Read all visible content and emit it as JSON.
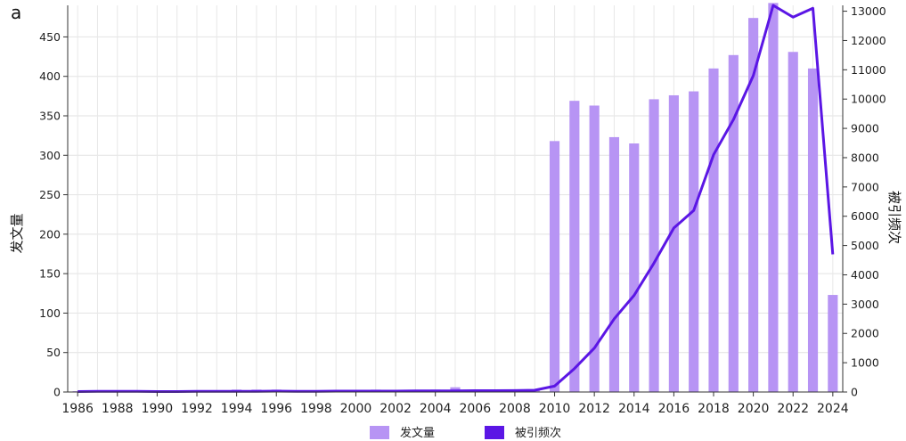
{
  "chart_data": {
    "type": "bar",
    "panel_label": "a",
    "title": "",
    "xlabel": "",
    "ylabel_left": "发文量",
    "ylabel_right": "被引频次",
    "ylim_left": [
      0,
      490
    ],
    "ylim_right": [
      0,
      13200
    ],
    "yticks_left": [
      0,
      50,
      100,
      150,
      200,
      250,
      300,
      350,
      400,
      450
    ],
    "yticks_right": [
      0,
      1000,
      2000,
      3000,
      4000,
      5000,
      6000,
      7000,
      8000,
      9000,
      10000,
      11000,
      12000,
      13000
    ],
    "grid": true,
    "legend_position": "bottom",
    "categories": [
      "1986",
      "1987",
      "1988",
      "1989",
      "1990",
      "1991",
      "1992",
      "1993",
      "1994",
      "1995",
      "1996",
      "1997",
      "1998",
      "1999",
      "2000",
      "2001",
      "2002",
      "2003",
      "2004",
      "2005",
      "2006",
      "2007",
      "2008",
      "2009",
      "2010",
      "2011",
      "2012",
      "2013",
      "2014",
      "2015",
      "2016",
      "2017",
      "2018",
      "2019",
      "2020",
      "2021",
      "2022",
      "2023",
      "2024"
    ],
    "x_tick_labels": [
      "1986",
      "1988",
      "1990",
      "1992",
      "1994",
      "1996",
      "1998",
      "2000",
      "2002",
      "2004",
      "2006",
      "2008",
      "2010",
      "2012",
      "2014",
      "2016",
      "2018",
      "2020",
      "2022",
      "2024"
    ],
    "series": [
      {
        "name": "发文量",
        "kind": "bar",
        "axis": "left",
        "color": "#b794f4",
        "values": [
          1,
          1,
          1,
          1,
          1,
          1,
          1,
          2,
          3,
          3,
          3,
          2,
          2,
          2,
          2,
          3,
          2,
          2,
          3,
          6,
          3,
          3,
          2,
          2,
          318,
          369,
          363,
          323,
          315,
          371,
          376,
          381,
          410,
          427,
          474,
          493,
          431,
          410,
          123
        ]
      },
      {
        "name": "被引频次",
        "kind": "line",
        "axis": "right",
        "color": "#5b16e5",
        "values": [
          15,
          20,
          25,
          20,
          15,
          15,
          20,
          20,
          25,
          25,
          30,
          25,
          25,
          30,
          30,
          30,
          30,
          35,
          35,
          40,
          45,
          45,
          50,
          60,
          200,
          800,
          1500,
          2500,
          3300,
          4400,
          5600,
          6200,
          8100,
          9300,
          10800,
          13200,
          12800,
          13100,
          4700
        ]
      }
    ]
  }
}
